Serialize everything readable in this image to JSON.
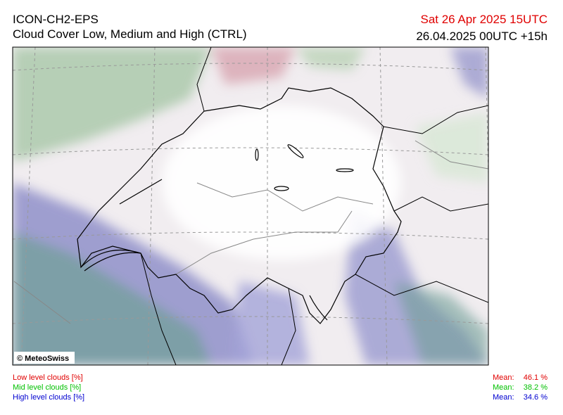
{
  "header": {
    "model": "ICON-CH2-EPS",
    "title": "Cloud Cover Low, Medium and High (CTRL)",
    "valid_time": "Sat 26 Apr 2025 15UTC",
    "run": "26.04.2025 00UTC +15h"
  },
  "map": {
    "credit": "© MeteoSwiss"
  },
  "legend": [
    {
      "label": "Low level clouds [%]",
      "mean_label": "Mean:",
      "mean": "46.1 %",
      "color": "#e00000"
    },
    {
      "label": "Mid level clouds [%]",
      "mean_label": "Mean:",
      "mean": "38.2 %",
      "color": "#00c000"
    },
    {
      "label": "High level clouds [%]",
      "mean_label": "Mean:",
      "mean": "34.6 %",
      "color": "#0000d0"
    }
  ]
}
